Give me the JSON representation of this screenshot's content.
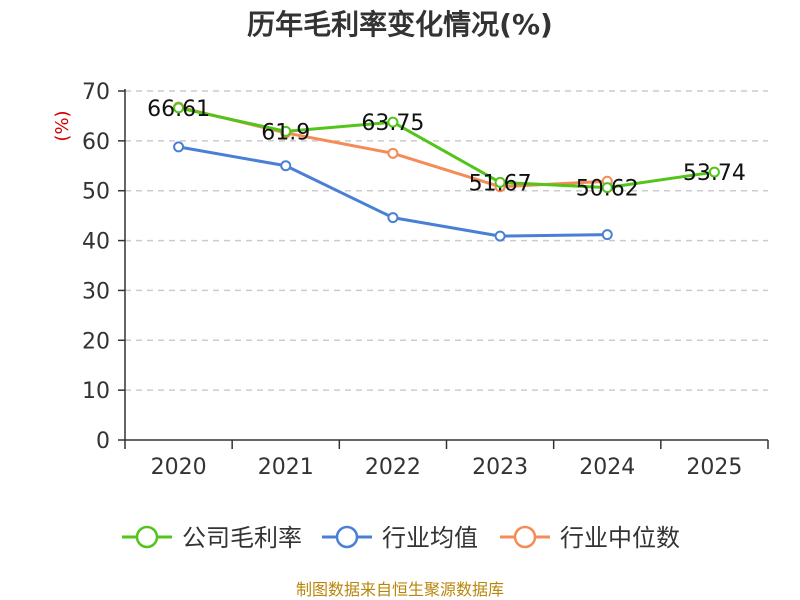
{
  "chart_data": {
    "type": "line",
    "title": "历年毛利率变化情况(%)",
    "ylabel": "(%)",
    "categories": [
      "2020",
      "2021",
      "2022",
      "2023",
      "2024",
      "2025"
    ],
    "ylim": [
      0,
      70
    ],
    "yticks": [
      0,
      10,
      20,
      30,
      40,
      50,
      60,
      70
    ],
    "grid": true,
    "legend_position": "bottom",
    "series": [
      {
        "name": "公司毛利率",
        "color": "#52c41a",
        "values": [
          66.61,
          61.9,
          63.75,
          51.67,
          50.62,
          53.74
        ],
        "labels": [
          "66.61",
          "61.9",
          "63.75",
          "51.67",
          "50.62",
          "53.74"
        ]
      },
      {
        "name": "行业均值",
        "color": "#4a7fd6",
        "values": [
          58.8,
          55.0,
          44.6,
          40.9,
          41.2,
          null
        ]
      },
      {
        "name": "行业中位数",
        "color": "#f58c57",
        "values": [
          66.8,
          61.6,
          57.5,
          50.8,
          51.9,
          null
        ]
      }
    ],
    "source": "制图数据来自恒生聚源数据库"
  }
}
